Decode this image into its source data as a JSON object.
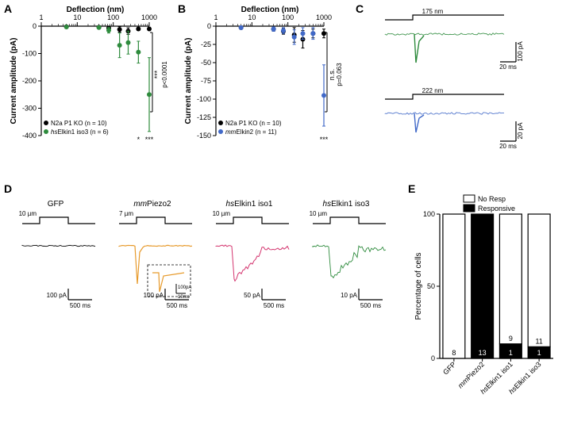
{
  "panelA": {
    "label": "A",
    "type": "scatter",
    "xlabel": "Deflection (nm)",
    "ylabel": "Current amplitude (pA)",
    "label_fontsize": 10,
    "tick_fontsize": 9,
    "xlog": true,
    "xlim": [
      1,
      1000
    ],
    "xticks": [
      1,
      10,
      100,
      1000
    ],
    "ylim": [
      -400,
      0
    ],
    "yticks": [
      0,
      -100,
      -200,
      -300,
      -400
    ],
    "series": [
      {
        "name": "N2a P1 KO (n = 10)",
        "color": "#000000",
        "marker": "circle",
        "x": [
          5,
          40,
          75,
          150,
          260,
          500,
          1000
        ],
        "y": [
          -2,
          -4,
          -7,
          -12,
          -18,
          -10,
          -10
        ],
        "err": [
          2,
          3,
          4,
          10,
          12,
          6,
          6
        ]
      },
      {
        "name": "hsElkin1 iso3 (n = 6)",
        "name_italic_prefix": "hs",
        "color": "#2e8b3d",
        "marker": "circle",
        "x": [
          5,
          40,
          75,
          150,
          260,
          500,
          1000
        ],
        "y": [
          -3,
          -5,
          -15,
          -70,
          -60,
          -95,
          -250
        ],
        "err": [
          3,
          4,
          10,
          45,
          42,
          40,
          135
        ]
      }
    ],
    "stats": [
      {
        "x": 500,
        "label": "*"
      },
      {
        "x": 1000,
        "label": "***"
      }
    ],
    "bracket": {
      "label": "***",
      "sublabel": "p<0.0001"
    },
    "grid_color": "#000000",
    "background_color": "#ffffff"
  },
  "panelB": {
    "label": "B",
    "type": "scatter",
    "xlabel": "Deflection (nm)",
    "ylabel": "Current amplitude (pA)",
    "xlog": true,
    "xlim": [
      1,
      1000
    ],
    "xticks": [
      1,
      10,
      100,
      1000
    ],
    "ylim": [
      -150,
      0
    ],
    "yticks": [
      0,
      -25,
      -50,
      -75,
      -100,
      -125,
      -150
    ],
    "series": [
      {
        "name": "N2a P1 KO (n = 10)",
        "color": "#000000",
        "marker": "circle",
        "x": [
          5,
          40,
          75,
          150,
          260,
          500,
          1000
        ],
        "y": [
          -2,
          -4,
          -7,
          -12,
          -18,
          -10,
          -10
        ],
        "err": [
          2,
          3,
          4,
          10,
          12,
          6,
          6
        ]
      },
      {
        "name": "mmElkin2 (n = 11)",
        "name_italic_prefix": "mm",
        "color": "#4169c8",
        "marker": "circle",
        "x": [
          5,
          40,
          75,
          150,
          260,
          500,
          1000
        ],
        "y": [
          -2,
          -4,
          -6,
          -15,
          -10,
          -10,
          -95
        ],
        "err": [
          2,
          3,
          4,
          10,
          8,
          8,
          42
        ]
      }
    ],
    "stats": [
      {
        "x": 1000,
        "label": "***"
      }
    ],
    "bracket": {
      "label": "n.s.",
      "sublabel": "p=0.063"
    },
    "grid_color": "#000000"
  },
  "panelC": {
    "label": "C",
    "traces": [
      {
        "stim_label": "175 nm",
        "color": "#2e8b3d",
        "yscale_label": "100 pA",
        "xscale_label": "20 ms"
      },
      {
        "stim_label": "222 nm",
        "color": "#4169c8",
        "yscale_label": "20 pA",
        "xscale_label": "20 ms"
      }
    ]
  },
  "panelD": {
    "label": "D",
    "traces": [
      {
        "name": "GFP",
        "color": "#000000",
        "stim": "10 µm",
        "yscale": "100 pA",
        "xscale": "500 ms",
        "has_inset": false
      },
      {
        "name": "mmPiezo2",
        "name_italic_prefix": "mm",
        "color": "#e79a2b",
        "stim": "7 µm",
        "yscale": "100 pA",
        "xscale": "500 ms",
        "has_inset": true,
        "inset_yscale": "100pA",
        "inset_xscale": "10ms"
      },
      {
        "name": "hsElkin1 iso1",
        "name_italic_prefix": "hs",
        "color": "#d4356f",
        "stim": "10 µm",
        "yscale": "50 pA",
        "xscale": "500 ms",
        "has_inset": false
      },
      {
        "name": "hsElkin1 iso3",
        "name_italic_prefix": "hs",
        "color": "#2e8b3d",
        "stim": "10 µm",
        "yscale": "10 pA",
        "xscale": "500 ms",
        "has_inset": false
      }
    ]
  },
  "panelE": {
    "label": "E",
    "type": "stacked_bar",
    "ylabel": "Percentage of cells",
    "ylim": [
      0,
      100
    ],
    "yticks": [
      0,
      50,
      100
    ],
    "categories": [
      {
        "name": "GFP",
        "responsive": 0,
        "responsive_n": 0,
        "noresp_n": 8
      },
      {
        "name": "mmPiezo2",
        "name_italic_prefix": "mm",
        "responsive": 100,
        "responsive_n": 13,
        "noresp_n": 0
      },
      {
        "name": "hsElkin1 iso1",
        "name_italic_prefix": "hs",
        "responsive": 10,
        "responsive_n": 1,
        "noresp_n": 9
      },
      {
        "name": "hsElkin1 iso3",
        "name_italic_prefix": "hs",
        "responsive": 8,
        "responsive_n": 1,
        "noresp_n": 11
      }
    ],
    "legend": [
      {
        "label": "No Resp",
        "fill": "#ffffff",
        "stroke": "#000000"
      },
      {
        "label": "Responsive",
        "fill": "#000000",
        "stroke": "#000000"
      }
    ],
    "bar_border": "#000000"
  }
}
